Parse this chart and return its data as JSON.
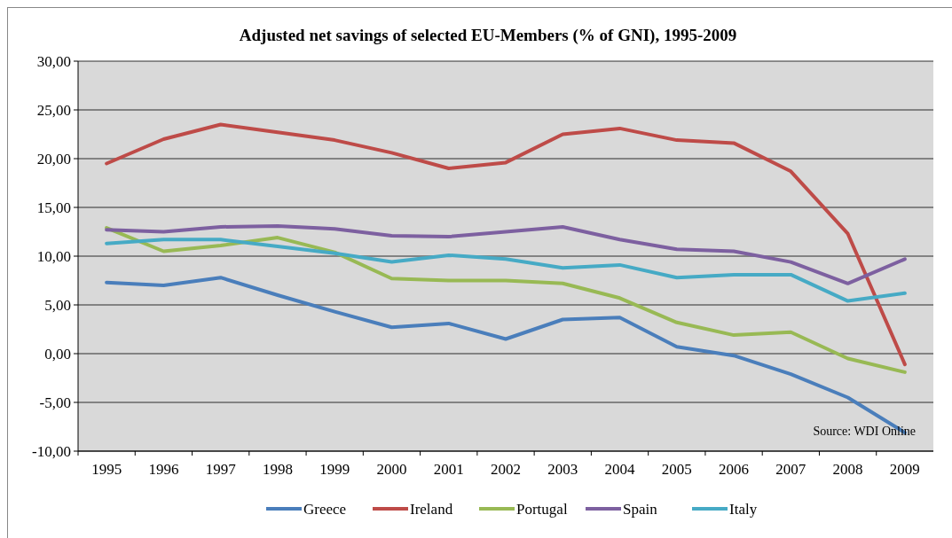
{
  "chart_data": {
    "type": "line",
    "title": "Adjusted net savings of selected EU-Members (% of GNI), 1995-2009",
    "categories": [
      "1995",
      "1996",
      "1997",
      "1998",
      "1999",
      "2000",
      "2001",
      "2002",
      "2003",
      "2004",
      "2005",
      "2006",
      "2007",
      "2008",
      "2009"
    ],
    "series": [
      {
        "name": "Greece",
        "color": "#4a7ebb",
        "values": [
          7.3,
          7.0,
          7.8,
          6.0,
          4.3,
          2.7,
          3.1,
          1.5,
          3.5,
          3.7,
          0.7,
          -0.2,
          -2.1,
          -4.5,
          -8.1
        ]
      },
      {
        "name": "Ireland",
        "color": "#be4b48",
        "values": [
          19.5,
          22.0,
          23.5,
          22.7,
          21.9,
          20.6,
          19.0,
          19.6,
          22.5,
          23.1,
          21.9,
          21.6,
          18.7,
          12.3,
          -1.1
        ]
      },
      {
        "name": "Portugal",
        "color": "#98b954",
        "values": [
          12.9,
          10.5,
          11.1,
          11.9,
          10.4,
          7.7,
          7.5,
          7.5,
          7.2,
          5.7,
          3.2,
          1.9,
          2.2,
          -0.5,
          -1.9
        ]
      },
      {
        "name": "Spain",
        "color": "#7d60a0",
        "values": [
          12.7,
          12.5,
          13.0,
          13.1,
          12.8,
          12.1,
          12.0,
          12.5,
          13.0,
          11.7,
          10.7,
          10.5,
          9.4,
          7.2,
          9.7
        ]
      },
      {
        "name": "Italy",
        "color": "#46aac5",
        "values": [
          11.3,
          11.7,
          11.7,
          11.0,
          10.3,
          9.4,
          10.1,
          9.7,
          8.8,
          9.1,
          7.8,
          8.1,
          8.1,
          5.4,
          6.2
        ]
      }
    ],
    "ylim": [
      -10,
      30
    ],
    "yticks": [
      {
        "value": -10,
        "label": "-10,00"
      },
      {
        "value": -5,
        "label": "-5,00"
      },
      {
        "value": 0,
        "label": "0,00"
      },
      {
        "value": 5,
        "label": "5,00"
      },
      {
        "value": 10,
        "label": "10,00"
      },
      {
        "value": 15,
        "label": "15,00"
      },
      {
        "value": 20,
        "label": "20,00"
      },
      {
        "value": 25,
        "label": "25,00"
      },
      {
        "value": 30,
        "label": "30,00"
      }
    ],
    "grid": "y",
    "legend": "bottom",
    "marker": "none",
    "line_style": "solid",
    "annotations": [
      "Source: WDI Online"
    ]
  }
}
